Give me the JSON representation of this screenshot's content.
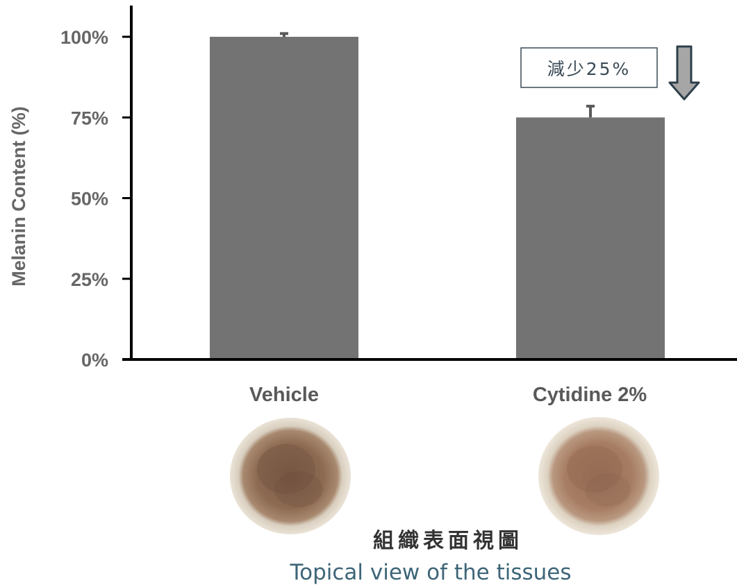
{
  "chart_data": {
    "type": "bar",
    "categories": [
      "Vehicle",
      "Cytidine 2%"
    ],
    "values": [
      100,
      75
    ],
    "error": [
      1,
      3.5
    ],
    "ylabel": "Melanin Content (%)",
    "ylim": [
      0,
      100
    ],
    "yticks": [
      "0%",
      "25%",
      "50%",
      "75%",
      "100%"
    ],
    "ytick_values": [
      0,
      25,
      50,
      75,
      100
    ],
    "grid": false,
    "bar_color": "#737373",
    "annotation": "減少25%",
    "annotation_arrow": "down-arrow-icon"
  },
  "images": [
    "vehicle-tissue-image",
    "cytidine-tissue-image"
  ],
  "caption": {
    "chinese": "組織表面視圖",
    "english": "Topical view of the tissues"
  },
  "colors": {
    "axis": "#000000",
    "tick_text": "#666666",
    "caption_en": "#3e6578",
    "arrow_fill": "#a6a6a6",
    "arrow_stroke": "#2e3f4a"
  }
}
